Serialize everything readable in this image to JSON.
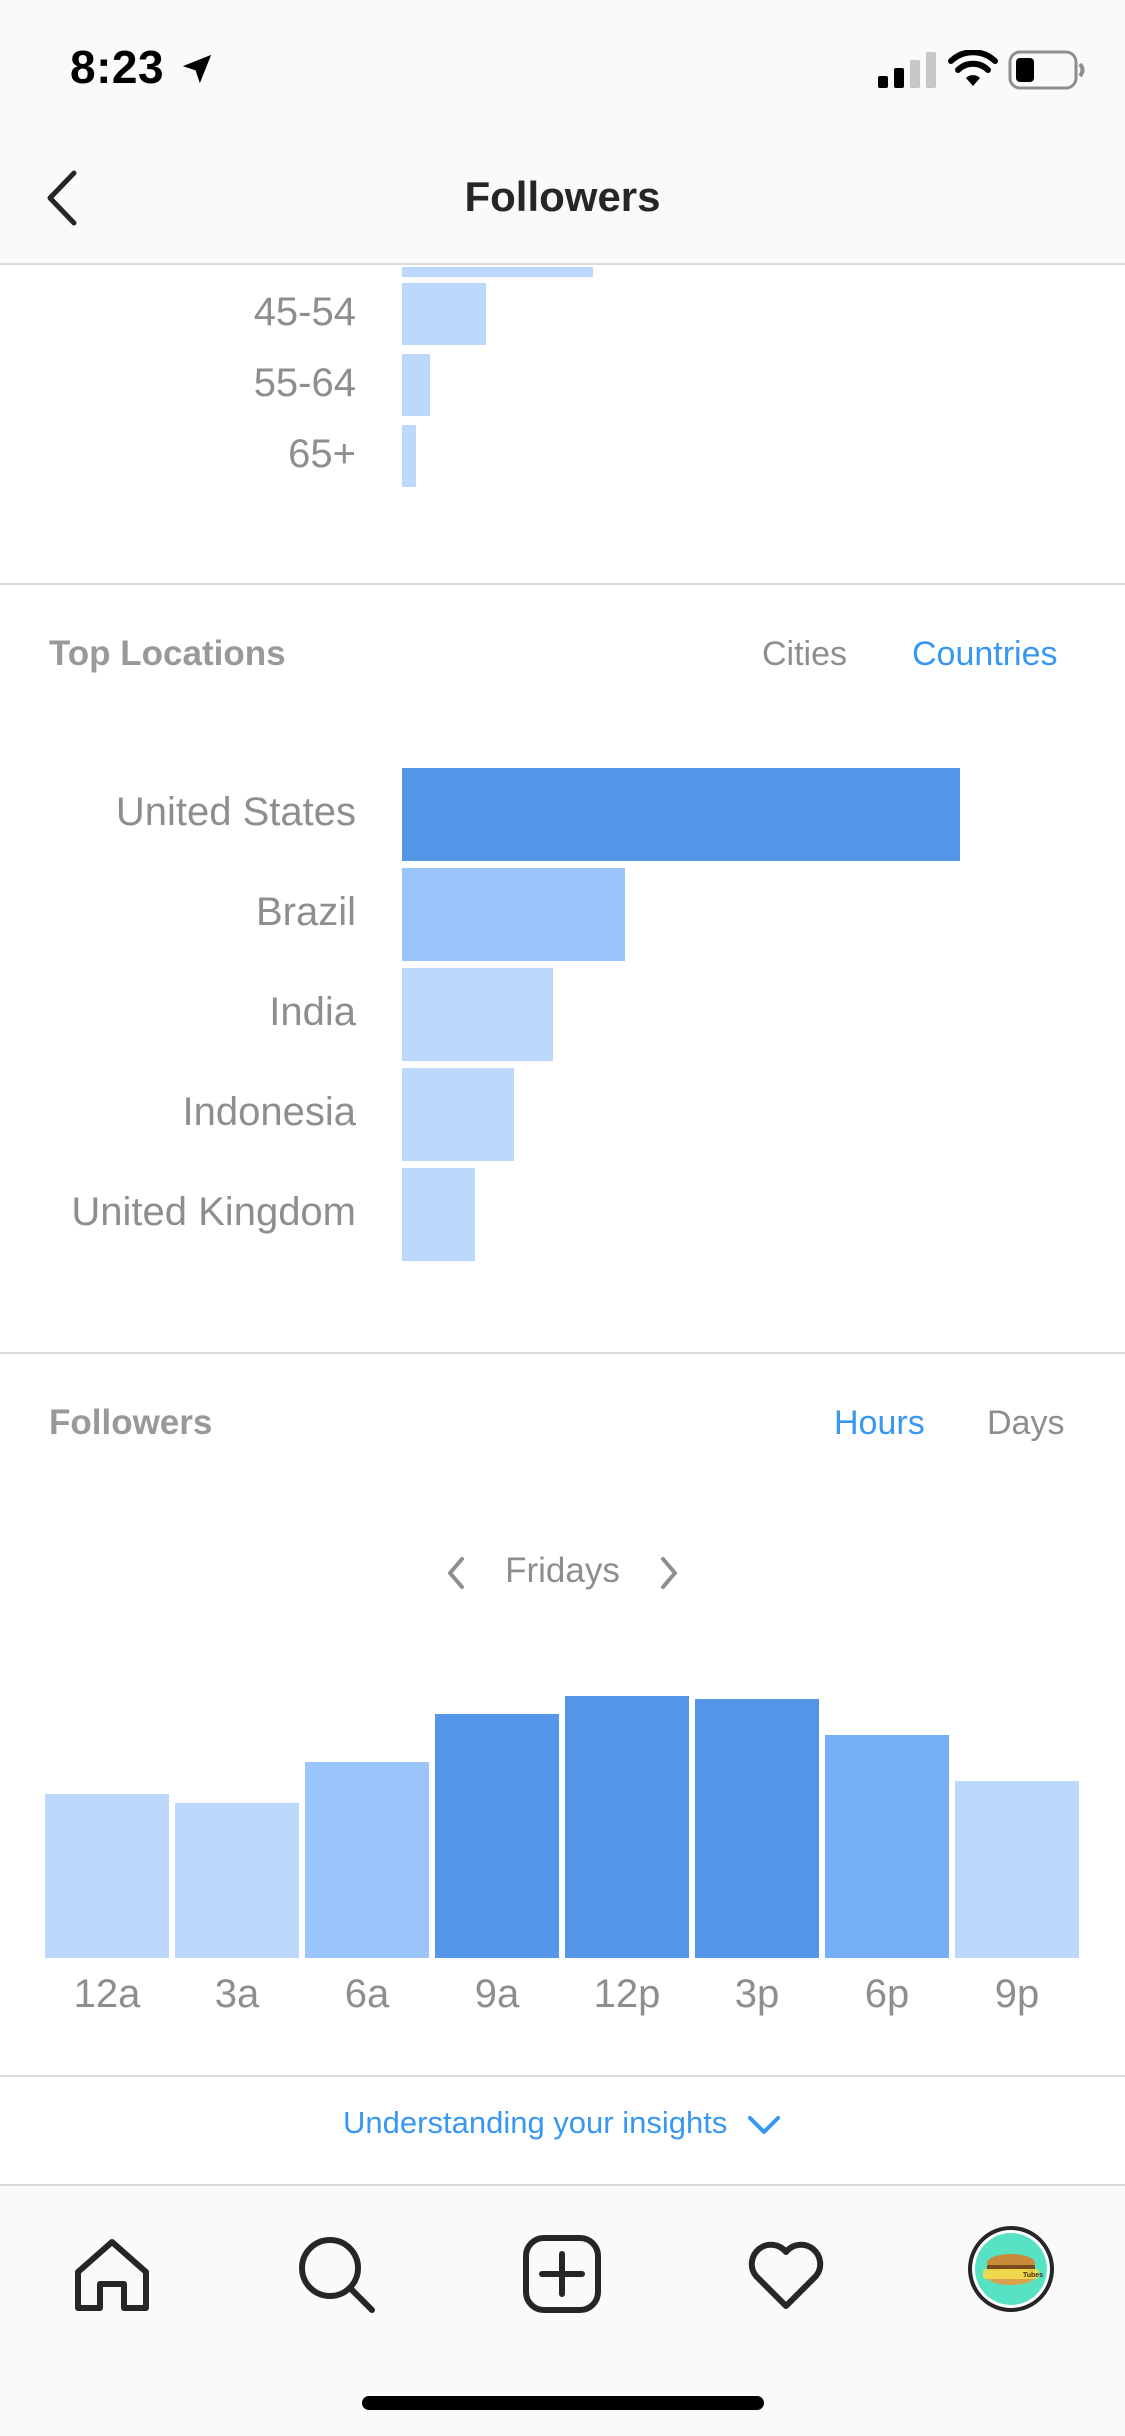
{
  "status_bar": {
    "time": "8:23"
  },
  "header": {
    "title": "Followers"
  },
  "age_range": {
    "rows": [
      {
        "label": "45-54"
      },
      {
        "label": "55-64"
      },
      {
        "label": "65+"
      }
    ]
  },
  "top_locations": {
    "title": "Top Locations",
    "toggles": {
      "cities": "Cities",
      "countries": "Countries",
      "active": "countries"
    },
    "rows": [
      {
        "label": "United States"
      },
      {
        "label": "Brazil"
      },
      {
        "label": "India"
      },
      {
        "label": "Indonesia"
      },
      {
        "label": "United Kingdom"
      }
    ]
  },
  "followers_activity": {
    "title": "Followers",
    "toggles": {
      "hours": "Hours",
      "days": "Days",
      "active": "hours"
    },
    "day": "Fridays",
    "hours": [
      "12a",
      "3a",
      "6a",
      "9a",
      "12p",
      "3p",
      "6p",
      "9p"
    ]
  },
  "footer": {
    "insights_link": "Understanding your insights"
  },
  "avatar": {
    "brand_text": "Tubes"
  },
  "colors": {
    "accent": "#3897f0",
    "bar_light": "#bcd8fb",
    "bar_medium": "#9ac5fa",
    "bar_mid": "#76aff6",
    "bar_dark": "#5596e9"
  },
  "icons": [
    "location-arrow-icon",
    "signal-icon",
    "wifi-icon",
    "battery-icon",
    "back-chevron-icon",
    "prev-chevron-icon",
    "next-chevron-icon",
    "chevron-down-icon",
    "home-icon",
    "search-icon",
    "add-post-icon",
    "heart-icon"
  ],
  "chart_data": [
    {
      "type": "bar",
      "orientation": "horizontal",
      "categories": [
        "45-54",
        "55-64",
        "65+"
      ],
      "values": [
        9,
        3,
        1.5
      ],
      "xlim": [
        0,
        60
      ],
      "truncated_top": true
    },
    {
      "type": "bar",
      "orientation": "horizontal",
      "categories": [
        "United States",
        "Brazil",
        "India",
        "Indonesia",
        "United Kingdom"
      ],
      "values": [
        100,
        40,
        27,
        20,
        13
      ],
      "xlim": [
        0,
        100
      ]
    },
    {
      "type": "bar",
      "categories": [
        "12a",
        "3a",
        "6a",
        "9a",
        "12p",
        "3p",
        "6p",
        "9p"
      ],
      "values": [
        164,
        155,
        196,
        244,
        262,
        259,
        223,
        177
      ],
      "ylim": [
        0,
        262
      ]
    }
  ]
}
